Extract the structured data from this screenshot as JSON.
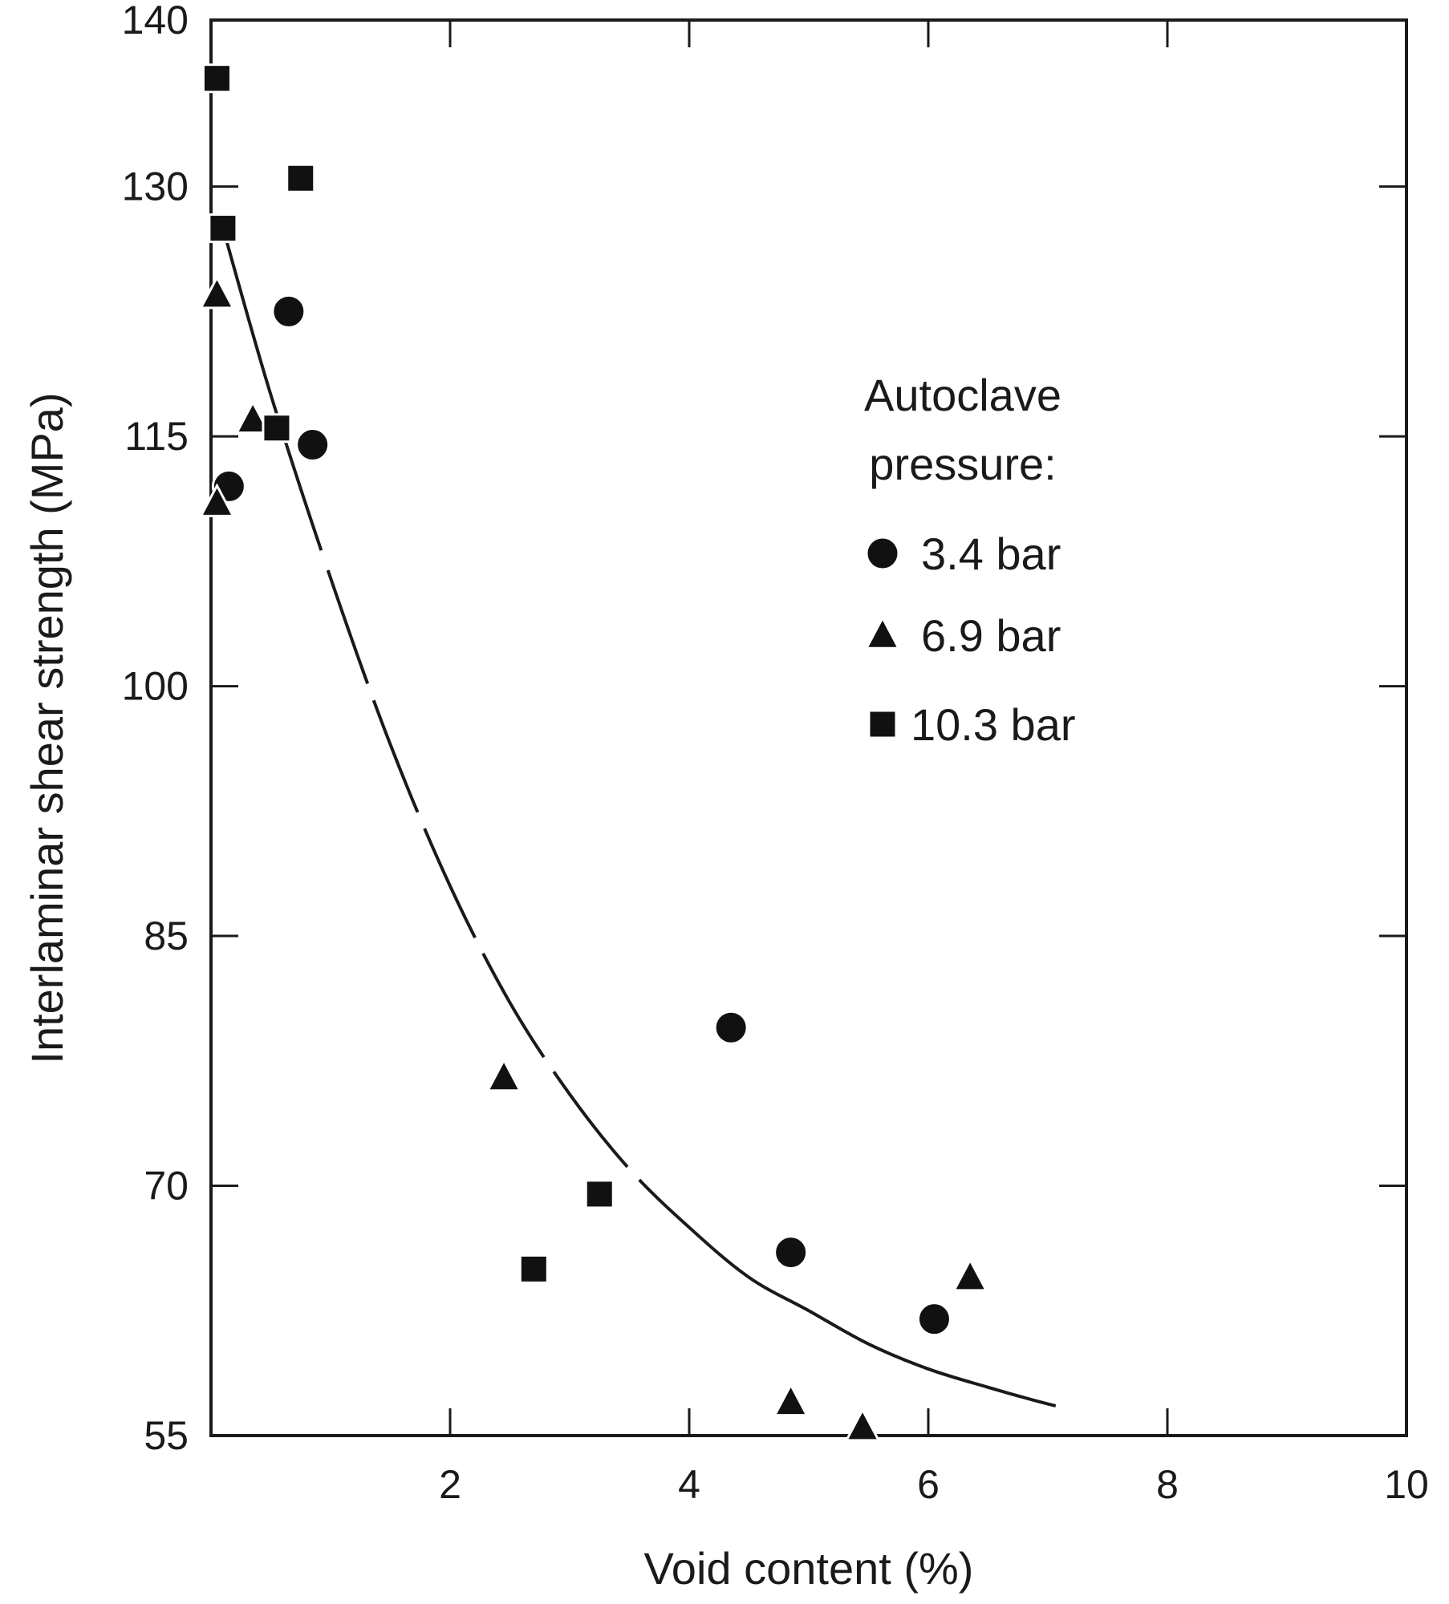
{
  "chart_data": {
    "type": "scatter",
    "title": "",
    "xlabel": "Void content (%)",
    "ylabel": "Interlaminar shear strength (MPa)",
    "xlim": [
      0,
      10
    ],
    "ylim": [
      55,
      140
    ],
    "xticks": [
      2,
      4,
      6,
      8,
      10
    ],
    "yticks": [
      55,
      70,
      85,
      100,
      115,
      130,
      140
    ],
    "grid": false,
    "legend": {
      "title_line1": "Autoclave",
      "title_line2": "pressure:",
      "placement": "right, upper-middle"
    },
    "series": [
      {
        "name": "3.4 bar",
        "marker": "circle",
        "points": [
          {
            "x": 0.15,
            "y": 112
          },
          {
            "x": 0.65,
            "y": 122.5
          },
          {
            "x": 0.85,
            "y": 114.5
          },
          {
            "x": 4.35,
            "y": 79.5
          },
          {
            "x": 4.85,
            "y": 66
          },
          {
            "x": 6.05,
            "y": 62
          }
        ]
      },
      {
        "name": "6.9 bar",
        "marker": "triangle",
        "points": [
          {
            "x": 0.05,
            "y": 123.5
          },
          {
            "x": 0.35,
            "y": 116
          },
          {
            "x": 0.05,
            "y": 111
          },
          {
            "x": 2.45,
            "y": 76.5
          },
          {
            "x": 4.85,
            "y": 57
          },
          {
            "x": 5.45,
            "y": 55.5
          },
          {
            "x": 6.35,
            "y": 64.5
          }
        ]
      },
      {
        "name": "10.3 bar",
        "marker": "square",
        "points": [
          {
            "x": 0.05,
            "y": 136.5
          },
          {
            "x": 0.75,
            "y": 130.5
          },
          {
            "x": 0.1,
            "y": 127.5
          },
          {
            "x": 0.55,
            "y": 115.5
          },
          {
            "x": 3.25,
            "y": 69.5
          },
          {
            "x": 2.7,
            "y": 65
          }
        ]
      }
    ],
    "trend_curve": {
      "style": "solid with dashed segments",
      "points": [
        {
          "x": 0.1,
          "y": 127.5
        },
        {
          "x": 0.5,
          "y": 117.5
        },
        {
          "x": 1.0,
          "y": 106.5
        },
        {
          "x": 1.5,
          "y": 96.5
        },
        {
          "x": 2.0,
          "y": 88
        },
        {
          "x": 2.5,
          "y": 81
        },
        {
          "x": 3.0,
          "y": 75.5
        },
        {
          "x": 3.5,
          "y": 71
        },
        {
          "x": 4.0,
          "y": 67.5
        },
        {
          "x": 4.5,
          "y": 64.5
        },
        {
          "x": 5.0,
          "y": 62.5
        },
        {
          "x": 5.5,
          "y": 60.5
        },
        {
          "x": 6.0,
          "y": 59
        },
        {
          "x": 6.5,
          "y": 57.9
        },
        {
          "x": 7.0,
          "y": 56.9
        },
        {
          "x": 7.5,
          "y": 56.1
        },
        {
          "x": 7.75,
          "y": 55.7
        }
      ]
    }
  }
}
